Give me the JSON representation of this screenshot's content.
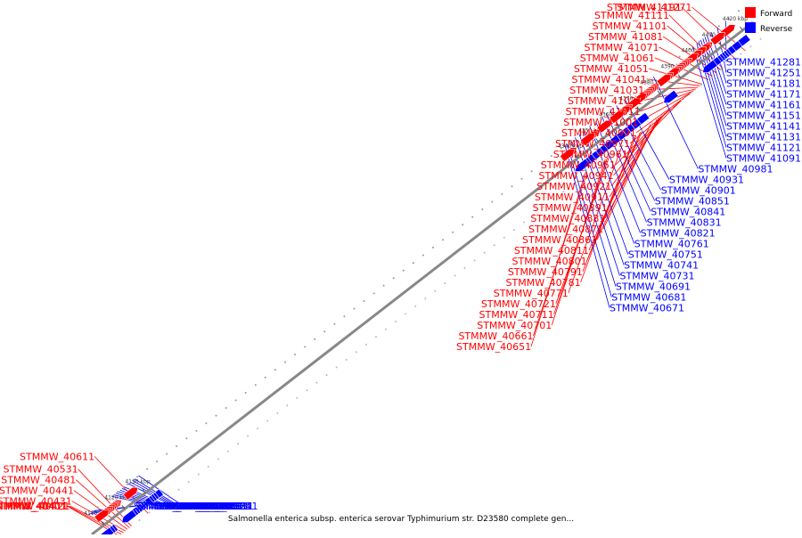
{
  "colors": {
    "forward": "#ff0000",
    "reverse": "#0000ff",
    "backbone": "#888888",
    "tick_label": "#333333"
  },
  "legend": {
    "forward": "Forward",
    "reverse": "Reverse"
  },
  "caption": "Salmonella enterica subsp. enterica serovar Typhimurium str. D23580 complete gen...",
  "scale": {
    "start_kbp": 4104,
    "end_kbp": 4425
  },
  "ticks": [
    "4110 kbp",
    "4120 kbp",
    "4130 kbp",
    "4340 kbp",
    "4350 kbp",
    "4360 kbp",
    "4370 kbp",
    "4380 kbp",
    "4390 kbp",
    "4400 kbp",
    "4410 kbp",
    "4420 kbp"
  ],
  "forward_genes": [
    {
      "name": "STMMW_40401",
      "pos_kbp": 4112
    },
    {
      "name": "STMMW_40411",
      "pos_kbp": 4113
    },
    {
      "name": "STMMW_40421",
      "pos_kbp": 4114
    },
    {
      "name": "STMMW_40431",
      "pos_kbp": 4115
    },
    {
      "name": "STMMW_40441",
      "pos_kbp": 4116
    },
    {
      "name": "STMMW_40481",
      "pos_kbp": 4117
    },
    {
      "name": "STMMW_40531",
      "pos_kbp": 4118
    },
    {
      "name": "STMMW_40611",
      "pos_kbp": 4126
    },
    {
      "name": "STMMW_40651",
      "pos_kbp": 4338
    },
    {
      "name": "STMMW_40661",
      "pos_kbp": 4339
    },
    {
      "name": "STMMW_40701",
      "pos_kbp": 4348
    },
    {
      "name": "STMMW_40711",
      "pos_kbp": 4349
    },
    {
      "name": "STMMW_40721",
      "pos_kbp": 4350
    },
    {
      "name": "STMMW_40771",
      "pos_kbp": 4356
    },
    {
      "name": "STMMW_40781",
      "pos_kbp": 4362
    },
    {
      "name": "STMMW_40791",
      "pos_kbp": 4363
    },
    {
      "name": "STMMW_40801",
      "pos_kbp": 4365
    },
    {
      "name": "STMMW_40811",
      "pos_kbp": 4366
    },
    {
      "name": "STMMW_40861",
      "pos_kbp": 4370
    },
    {
      "name": "STMMW_40871",
      "pos_kbp": 4373
    },
    {
      "name": "STMMW_40881",
      "pos_kbp": 4374
    },
    {
      "name": "STMMW_40891",
      "pos_kbp": 4375
    },
    {
      "name": "STMMW_40911",
      "pos_kbp": 4376
    },
    {
      "name": "STMMW_40921",
      "pos_kbp": 4377
    },
    {
      "name": "STMMW_40941",
      "pos_kbp": 4378
    },
    {
      "name": "STMMW_40951",
      "pos_kbp": 4379
    },
    {
      "name": "STMMW_40961",
      "pos_kbp": 4385
    },
    {
      "name": "STMMW_40971",
      "pos_kbp": 4386
    },
    {
      "name": "STMMW_40991",
      "pos_kbp": 4389
    },
    {
      "name": "STMMW_41001",
      "pos_kbp": 4390
    },
    {
      "name": "STMMW_41011",
      "pos_kbp": 4391
    },
    {
      "name": "STMMW_41021",
      "pos_kbp": 4392
    },
    {
      "name": "STMMW_41031",
      "pos_kbp": 4393
    },
    {
      "name": "STMMW_41041",
      "pos_kbp": 4394
    },
    {
      "name": "STMMW_41051",
      "pos_kbp": 4395
    },
    {
      "name": "STMMW_41061",
      "pos_kbp": 4398
    },
    {
      "name": "STMMW_41071",
      "pos_kbp": 4400
    },
    {
      "name": "STMMW_41081",
      "pos_kbp": 4402
    },
    {
      "name": "STMMW_41101",
      "pos_kbp": 4404
    },
    {
      "name": "STMMW_41111",
      "pos_kbp": 4405
    },
    {
      "name": "STMMW_41191",
      "pos_kbp": 4411
    },
    {
      "name": "STMMW_41271",
      "pos_kbp": 4416
    }
  ],
  "reverse_genes": [
    {
      "name": "STMMW_40461",
      "pos_kbp": 4108
    },
    {
      "name": "STMMW_40491",
      "pos_kbp": 4109
    },
    {
      "name": "STMMW_40501",
      "pos_kbp": 4110
    },
    {
      "name": "STMMW_40511",
      "pos_kbp": 4119
    },
    {
      "name": "STMMW_40521",
      "pos_kbp": 4120
    },
    {
      "name": "STMMW_40541",
      "pos_kbp": 4121
    },
    {
      "name": "STMMW_40551",
      "pos_kbp": 4122
    },
    {
      "name": "STMMW_40561",
      "pos_kbp": 4123
    },
    {
      "name": "STMMW_40571",
      "pos_kbp": 4124
    },
    {
      "name": "STMMW_40581",
      "pos_kbp": 4125
    },
    {
      "name": "STMMW_40591",
      "pos_kbp": 4127
    },
    {
      "name": "STMMW_40601",
      "pos_kbp": 4128
    },
    {
      "name": "STMMW_40621",
      "pos_kbp": 4129
    },
    {
      "name": "STMMW_40631",
      "pos_kbp": 4130
    },
    {
      "name": "STMMW_40641",
      "pos_kbp": 4132
    },
    {
      "name": "STMMW_40671",
      "pos_kbp": 4339
    },
    {
      "name": "STMMW_40681",
      "pos_kbp": 4340
    },
    {
      "name": "STMMW_40691",
      "pos_kbp": 4342
    },
    {
      "name": "STMMW_40731",
      "pos_kbp": 4344
    },
    {
      "name": "STMMW_40741",
      "pos_kbp": 4346
    },
    {
      "name": "STMMW_40751",
      "pos_kbp": 4348
    },
    {
      "name": "STMMW_40761",
      "pos_kbp": 4351
    },
    {
      "name": "STMMW_40821",
      "pos_kbp": 4354
    },
    {
      "name": "STMMW_40831",
      "pos_kbp": 4357
    },
    {
      "name": "STMMW_40841",
      "pos_kbp": 4359
    },
    {
      "name": "STMMW_40851",
      "pos_kbp": 4361
    },
    {
      "name": "STMMW_40901",
      "pos_kbp": 4364
    },
    {
      "name": "STMMW_40931",
      "pos_kbp": 4368
    },
    {
      "name": "STMMW_40981",
      "pos_kbp": 4382
    },
    {
      "name": "STMMW_41091",
      "pos_kbp": 4401
    },
    {
      "name": "STMMW_41121",
      "pos_kbp": 4403
    },
    {
      "name": "STMMW_41131",
      "pos_kbp": 4404
    },
    {
      "name": "STMMW_41141",
      "pos_kbp": 4405
    },
    {
      "name": "STMMW_41151",
      "pos_kbp": 4406
    },
    {
      "name": "STMMW_41161",
      "pos_kbp": 4407
    },
    {
      "name": "STMMW_41171",
      "pos_kbp": 4408
    },
    {
      "name": "STMMW_41181",
      "pos_kbp": 4410
    },
    {
      "name": "STMMW_41251",
      "pos_kbp": 4413
    },
    {
      "name": "STMMW_41281",
      "pos_kbp": 4417
    }
  ]
}
